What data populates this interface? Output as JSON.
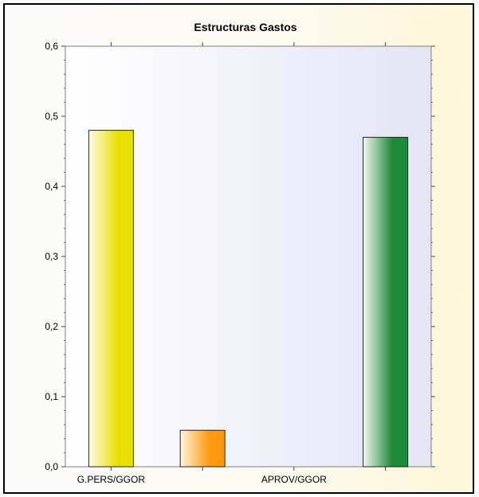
{
  "chart_data": {
    "type": "bar",
    "title": "Estructuras Gastos",
    "categories": [
      "G.PERS/GGOR",
      "",
      "APROV/GGOR",
      ""
    ],
    "values": [
      0.48,
      0.052,
      0,
      0.47
    ],
    "bar_colors": [
      {
        "light": "#fffbe6",
        "dark": "#e8e000"
      },
      {
        "light": "#fff4dc",
        "dark": "#ff9a10"
      },
      {
        "light": "#ffffff",
        "dark": "#cccccc"
      },
      {
        "light": "#f2faf0",
        "dark": "#1e8a3a"
      }
    ],
    "ylim": [
      0,
      0.6
    ],
    "yticks": [
      "0,0",
      "0,1",
      "0,2",
      "0,3",
      "0,4",
      "0,5",
      "0,6"
    ],
    "xlabel": "",
    "ylabel": "",
    "grid": false,
    "plot_background": "#e3e4f4"
  }
}
